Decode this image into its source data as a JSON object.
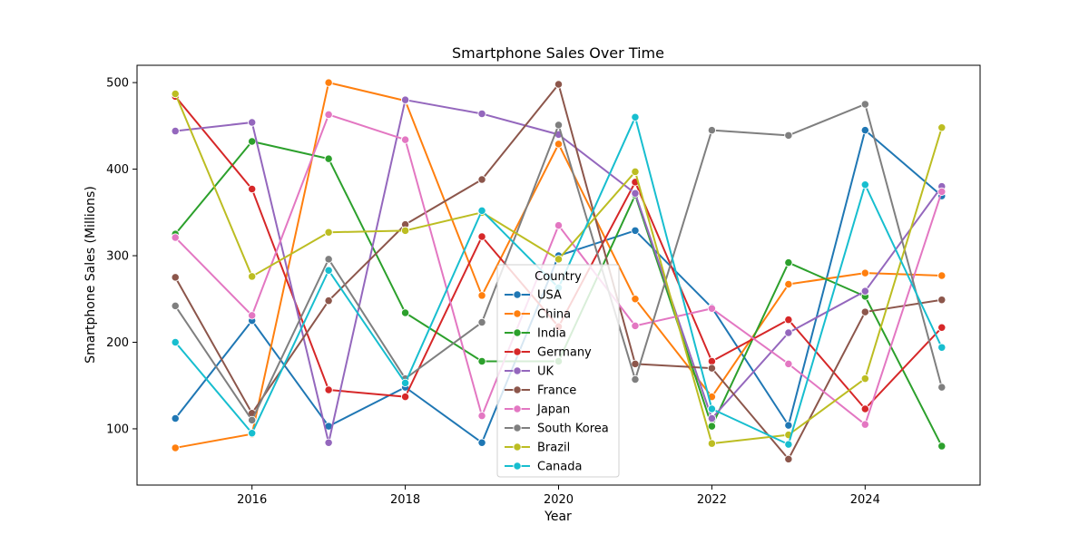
{
  "chart_data": {
    "type": "line",
    "title": "Smartphone Sales Over Time",
    "xlabel": "Year",
    "ylabel": "Smartphone Sales (Millions)",
    "x": [
      2015,
      2016,
      2017,
      2018,
      2019,
      2020,
      2021,
      2022,
      2023,
      2024,
      2025
    ],
    "xlim": [
      2014.5,
      2025.5
    ],
    "ylim": [
      35,
      520
    ],
    "xticks": [
      "2016",
      "2018",
      "2020",
      "2022",
      "2024"
    ],
    "yticks": [
      "100",
      "200",
      "300",
      "400",
      "500"
    ],
    "grid": false,
    "legend": {
      "title": "Country",
      "placement": "lower-center"
    },
    "series": [
      {
        "name": "USA",
        "color": "#1f77b4",
        "values": [
          112,
          225,
          103,
          148,
          84,
          300,
          329,
          240,
          104,
          445,
          369
        ]
      },
      {
        "name": "China",
        "color": "#ff7f0e",
        "values": [
          78,
          94,
          500,
          479,
          254,
          429,
          250,
          137,
          267,
          280,
          277
        ]
      },
      {
        "name": "India",
        "color": "#2ca02c",
        "values": [
          325,
          432,
          412,
          234,
          178,
          178,
          370,
          103,
          292,
          253,
          80
        ]
      },
      {
        "name": "Germany",
        "color": "#d62728",
        "values": [
          484,
          377,
          145,
          137,
          322,
          218,
          385,
          178,
          226,
          123,
          217
        ]
      },
      {
        "name": "UK",
        "color": "#9467bd",
        "values": [
          444,
          454,
          84,
          480,
          464,
          440,
          372,
          112,
          211,
          259,
          380
        ]
      },
      {
        "name": "France",
        "color": "#8c564b",
        "values": [
          275,
          118,
          248,
          336,
          388,
          498,
          175,
          170,
          65,
          235,
          249
        ]
      },
      {
        "name": "Japan",
        "color": "#e377c2",
        "values": [
          321,
          231,
          463,
          434,
          115,
          335,
          219,
          239,
          175,
          105,
          374
        ]
      },
      {
        "name": "South Korea",
        "color": "#7f7f7f",
        "values": [
          242,
          110,
          296,
          158,
          223,
          451,
          157,
          445,
          439,
          475,
          148
        ]
      },
      {
        "name": "Brazil",
        "color": "#bcbd22",
        "values": [
          487,
          276,
          327,
          329,
          350,
          296,
          397,
          83,
          93,
          158,
          448
        ]
      },
      {
        "name": "Canada",
        "color": "#17becf",
        "values": [
          200,
          95,
          283,
          153,
          352,
          263,
          460,
          123,
          82,
          382,
          194
        ]
      }
    ]
  }
}
